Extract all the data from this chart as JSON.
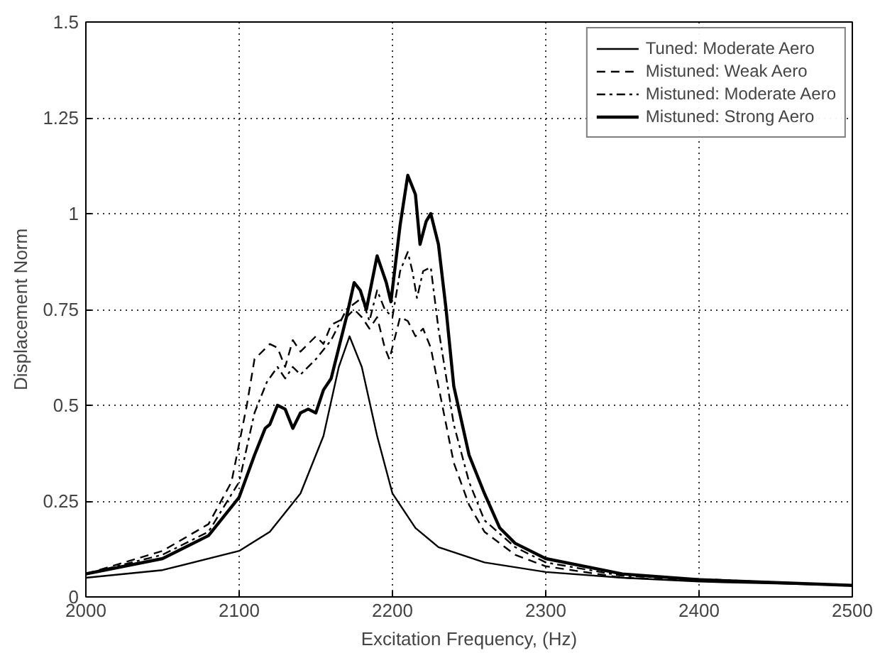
{
  "chart_data": {
    "type": "line",
    "xlabel": "Excitation Frequency, (Hz)",
    "ylabel": "Displacement Norm",
    "xlim": [
      2000,
      2500
    ],
    "ylim": [
      0,
      1.5
    ],
    "xticks": [
      2000,
      2100,
      2200,
      2300,
      2400,
      2500
    ],
    "yticks": [
      0,
      0.25,
      0.5,
      0.75,
      1,
      1.25,
      1.5
    ],
    "grid": true,
    "legend": "top right",
    "marker": "none",
    "series": [
      {
        "name": "Tuned: Moderate Aero",
        "color": "#000000",
        "line_style": "solid",
        "x": [
          2000,
          2050,
          2100,
          2120,
          2140,
          2155,
          2165,
          2172,
          2180,
          2190,
          2200,
          2215,
          2230,
          2260,
          2300,
          2350,
          2400,
          2450,
          2500
        ],
        "values": [
          0.05,
          0.07,
          0.12,
          0.17,
          0.27,
          0.42,
          0.6,
          0.68,
          0.6,
          0.42,
          0.27,
          0.18,
          0.13,
          0.09,
          0.065,
          0.05,
          0.04,
          0.035,
          0.03
        ]
      },
      {
        "name": "Mistuned: Weak Aero",
        "color": "#000000",
        "line_style": "dashed",
        "x": [
          2000,
          2050,
          2080,
          2095,
          2105,
          2110,
          2120,
          2125,
          2130,
          2135,
          2140,
          2145,
          2150,
          2155,
          2160,
          2170,
          2175,
          2180,
          2185,
          2190,
          2195,
          2198,
          2205,
          2210,
          2215,
          2220,
          2225,
          2230,
          2240,
          2250,
          2260,
          2280,
          2300,
          2350,
          2500
        ],
        "values": [
          0.06,
          0.12,
          0.19,
          0.3,
          0.5,
          0.62,
          0.66,
          0.65,
          0.6,
          0.67,
          0.64,
          0.66,
          0.68,
          0.66,
          0.71,
          0.73,
          0.75,
          0.73,
          0.7,
          0.73,
          0.65,
          0.62,
          0.73,
          0.72,
          0.68,
          0.7,
          0.65,
          0.55,
          0.35,
          0.24,
          0.17,
          0.11,
          0.08,
          0.05,
          0.03
        ]
      },
      {
        "name": "Mistuned: Moderate Aero",
        "color": "#000000",
        "line_style": "dashdot",
        "x": [
          2000,
          2050,
          2080,
          2100,
          2110,
          2118,
          2125,
          2130,
          2135,
          2140,
          2150,
          2160,
          2170,
          2180,
          2185,
          2190,
          2195,
          2200,
          2205,
          2210,
          2213,
          2216,
          2220,
          2225,
          2230,
          2240,
          2250,
          2260,
          2280,
          2300,
          2350,
          2500
        ],
        "values": [
          0.06,
          0.11,
          0.17,
          0.3,
          0.48,
          0.56,
          0.6,
          0.57,
          0.6,
          0.58,
          0.62,
          0.67,
          0.75,
          0.78,
          0.72,
          0.8,
          0.75,
          0.73,
          0.85,
          0.9,
          0.85,
          0.78,
          0.85,
          0.86,
          0.7,
          0.45,
          0.3,
          0.2,
          0.13,
          0.09,
          0.055,
          0.03
        ]
      },
      {
        "name": "Mistuned: Strong Aero",
        "color": "#000000",
        "line_style": "solid",
        "x": [
          2000,
          2050,
          2080,
          2100,
          2110,
          2117,
          2120,
          2125,
          2130,
          2135,
          2140,
          2145,
          2150,
          2155,
          2160,
          2165,
          2170,
          2175,
          2179,
          2183,
          2190,
          2196,
          2199,
          2205,
          2210,
          2215,
          2218,
          2222,
          2225,
          2230,
          2235,
          2240,
          2250,
          2260,
          2270,
          2280,
          2300,
          2350,
          2400,
          2500
        ],
        "values": [
          0.06,
          0.1,
          0.16,
          0.26,
          0.37,
          0.44,
          0.45,
          0.5,
          0.49,
          0.44,
          0.48,
          0.49,
          0.48,
          0.54,
          0.57,
          0.65,
          0.73,
          0.82,
          0.8,
          0.75,
          0.89,
          0.82,
          0.77,
          0.97,
          1.1,
          1.05,
          0.92,
          0.98,
          1.0,
          0.92,
          0.75,
          0.55,
          0.37,
          0.27,
          0.18,
          0.14,
          0.1,
          0.06,
          0.045,
          0.03
        ]
      }
    ]
  }
}
